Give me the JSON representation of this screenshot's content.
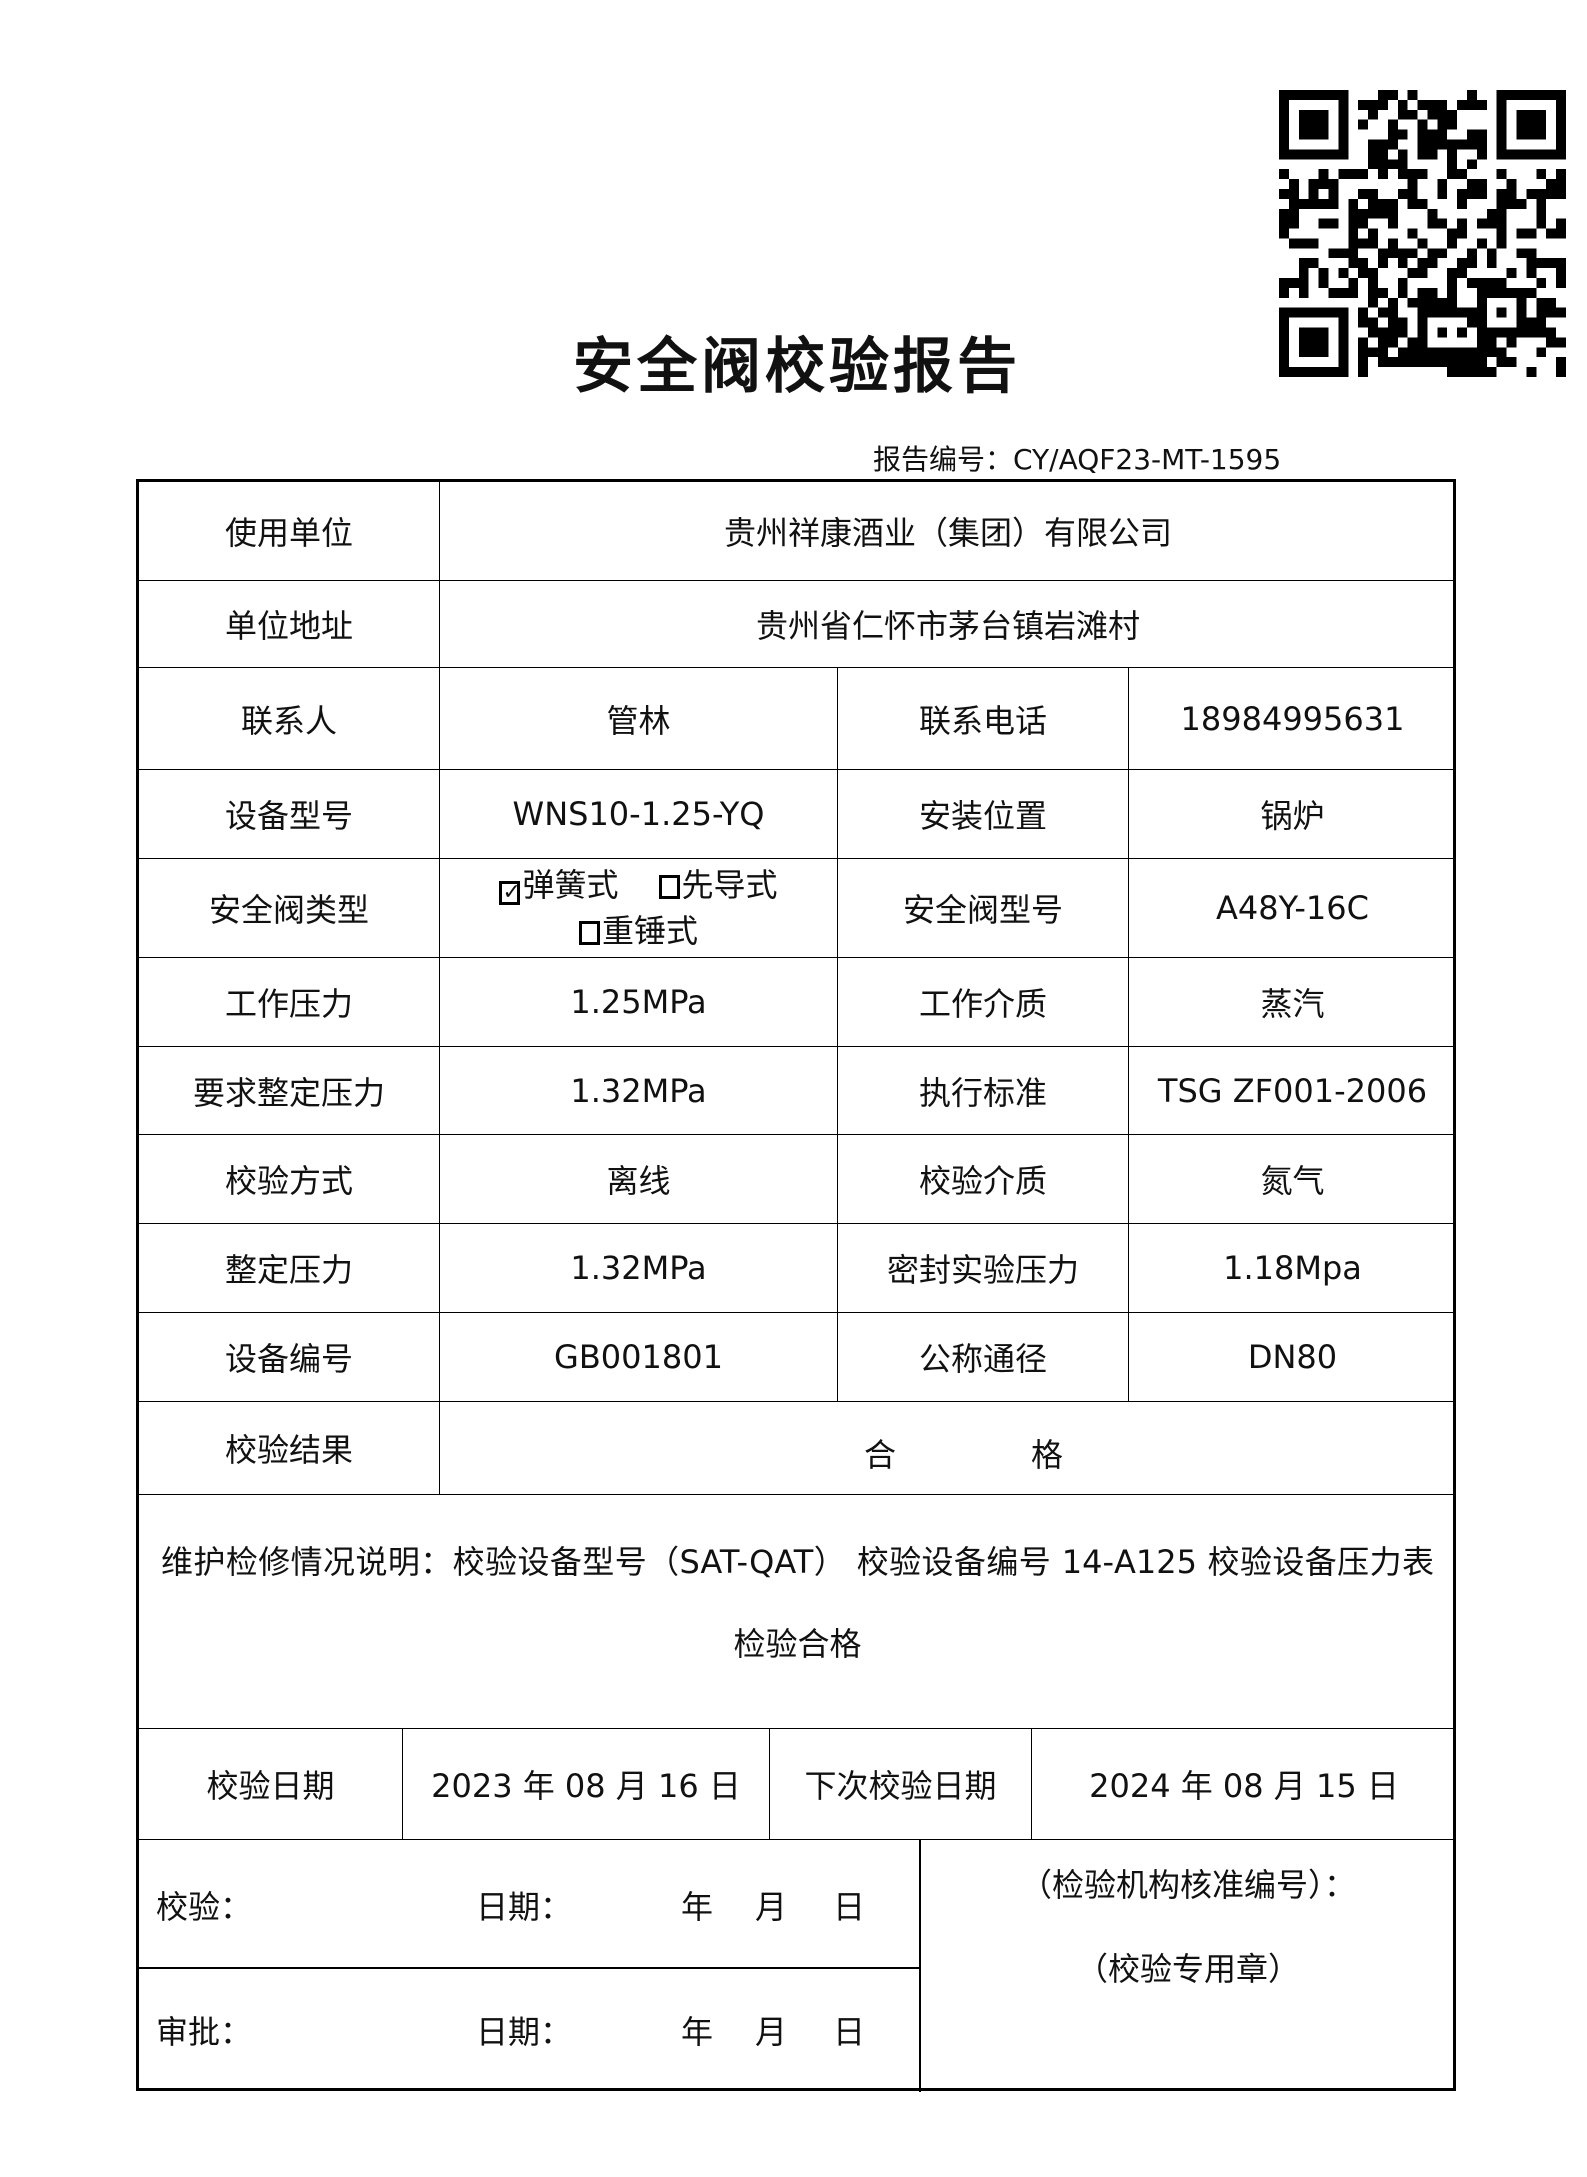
{
  "title": "安全阀校验报告",
  "report_no": "报告编号：CY/AQF23-MT-1595",
  "qr_code": "qr-code",
  "rows": {
    "user_unit": {
      "label": "使用单位",
      "value": "贵州祥康酒业（集团）有限公司"
    },
    "address": {
      "label": "单位地址",
      "value": "贵州省仁怀市茅台镇岩滩村"
    },
    "contact": {
      "label": "联系人",
      "value": "管林",
      "label2": "联系电话",
      "value2": "18984995631"
    },
    "model": {
      "label": "设备型号",
      "value": "WNS10-1.25-YQ",
      "label2": "安装位置",
      "value2": "锅炉"
    },
    "valve_type": {
      "label": "安全阀类型",
      "options": [
        {
          "label": "弹簧式",
          "checked": true
        },
        {
          "label": "先导式",
          "checked": false
        },
        {
          "label": "重锤式",
          "checked": false
        }
      ],
      "label2": "安全阀型号",
      "value2": "A48Y-16C"
    },
    "work_pressure": {
      "label": "工作压力",
      "value": "1.25MPa",
      "label2": "工作介质",
      "value2": "蒸汽"
    },
    "req_pressure": {
      "label": "要求整定压力",
      "value": "1.32MPa",
      "label2": "执行标准",
      "value2": "TSG ZF001-2006"
    },
    "method": {
      "label": "校验方式",
      "value": "离线",
      "label2": "校验介质",
      "value2": "氮气"
    },
    "set_pressure": {
      "label": "整定压力",
      "value": "1.32MPa",
      "label2": "密封实验压力",
      "value2": "1.18Mpa"
    },
    "equip_no": {
      "label": "设备编号",
      "value": "GB001801",
      "label2": "公称通径",
      "value2": "DN80"
    },
    "result": {
      "label": "校验结果",
      "value_1": "合",
      "value_2": "格"
    }
  },
  "maintenance": "维护检修情况说明：校验设备型号（SAT-QAT） 校验设备编号 14-A125 校验设备压力表检验合格",
  "dates": {
    "label": "校验日期",
    "value": "2023 年 08 月 16 日",
    "label2": "下次校验日期",
    "value2": "2024 年 08 月 15 日"
  },
  "sign": {
    "check": "校验：",
    "approve": "审批：",
    "date": "日期：",
    "year": "年",
    "month": "月",
    "day": "日",
    "org_no": "（检验机构核准编号）：",
    "seal": "（校验专用章）"
  }
}
